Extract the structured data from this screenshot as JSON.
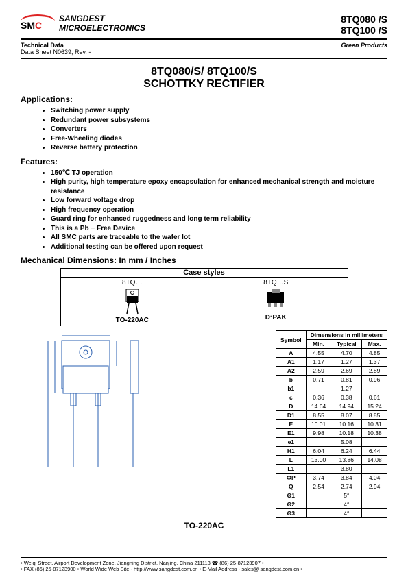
{
  "header": {
    "company_line1": "SANGDEST",
    "company_line2": "MICROELECTRONICS",
    "part1": "8TQ080 /S",
    "part2": "8TQ100 /S",
    "tech_data": "Technical Data",
    "datasheet": "Data Sheet N0639, Rev. -",
    "green": "Green Products",
    "logo_text_smc": "SMC",
    "logo_arc_color": "#d22"
  },
  "title": {
    "line1": "8TQ080/S/ 8TQ100/S",
    "line2": "SCHOTTKY RECTIFIER"
  },
  "applications": {
    "heading": "Applications:",
    "items": [
      "Switching power supply",
      "Redundant power subsystems",
      "Converters",
      "Free-Wheeling diodes",
      "Reverse battery protection"
    ]
  },
  "features": {
    "heading": "Features:",
    "items": [
      "150℃ TJ operation",
      "High purity, high temperature epoxy encapsulation for enhanced mechanical strength and moisture resistance",
      "Low forward voltage drop",
      "High frequency operation",
      "Guard ring for enhanced ruggedness and long term reliability",
      "This is a Pb − Free Device",
      "All SMC parts are traceable to the wafer lot",
      "Additional testing can be offered upon request"
    ]
  },
  "mech_heading": "Mechanical Dimensions: In mm / Inches",
  "case_styles": {
    "heading": "Case styles",
    "left_label": "8TQ…",
    "left_pkg": "TO-220AC",
    "right_label": "8TQ…S",
    "right_pkg": "D²PAK"
  },
  "dim_table": {
    "h_symbol": "Symbol",
    "h_dimensions": "Dimensions in millimeters",
    "h_min": "Min.",
    "h_typ": "Typical",
    "h_max": "Max.",
    "rows": [
      {
        "sym": "A",
        "min": "4.55",
        "typ": "4.70",
        "max": "4.85"
      },
      {
        "sym": "A1",
        "min": "1.17",
        "typ": "1.27",
        "max": "1.37"
      },
      {
        "sym": "A2",
        "min": "2.59",
        "typ": "2.69",
        "max": "2.89"
      },
      {
        "sym": "b",
        "min": "0.71",
        "typ": "0.81",
        "max": "0.96"
      },
      {
        "sym": "b1",
        "min": "",
        "typ": "1.27",
        "max": ""
      },
      {
        "sym": "c",
        "min": "0.36",
        "typ": "0.38",
        "max": "0.61"
      },
      {
        "sym": "D",
        "min": "14.64",
        "typ": "14.94",
        "max": "15.24"
      },
      {
        "sym": "D1",
        "min": "8.55",
        "typ": "8.07",
        "max": "8.85"
      },
      {
        "sym": "E",
        "min": "10.01",
        "typ": "10.16",
        "max": "10.31"
      },
      {
        "sym": "E1",
        "min": "9.98",
        "typ": "10.18",
        "max": "10.38"
      },
      {
        "sym": "e1",
        "min": "",
        "typ": "5.08",
        "max": ""
      },
      {
        "sym": "H1",
        "min": "6.04",
        "typ": "6.24",
        "max": "6.44"
      },
      {
        "sym": "L",
        "min": "13.00",
        "typ": "13.86",
        "max": "14.08"
      },
      {
        "sym": "L1",
        "min": "",
        "typ": "3.80",
        "max": ""
      },
      {
        "sym": "ΦP",
        "min": "3.74",
        "typ": "3.84",
        "max": "4.04"
      },
      {
        "sym": "Q",
        "min": "2.54",
        "typ": "2.74",
        "max": "2.94"
      },
      {
        "sym": "Θ1",
        "min": "",
        "typ": "5°",
        "max": ""
      },
      {
        "sym": "Θ2",
        "min": "",
        "typ": "4°",
        "max": ""
      },
      {
        "sym": "Θ3",
        "min": "",
        "typ": "4°",
        "max": ""
      }
    ]
  },
  "pkg_label": "TO-220AC",
  "footer": {
    "line1": "• Weiqi Street, Airport Development Zone, Jiangning District, Nanjing, China 211113 ☎ (86) 25-87123907 •",
    "line2": "• FAX (86) 25-87123900 • World Wide Web Site - http://www.sangdest.com.cn • E-Mail Address - sales@ sangdest.com.cn •"
  },
  "colors": {
    "border": "#000000",
    "text": "#000000",
    "logo_red": "#d22",
    "drawing_blue": "#2a5fb0"
  }
}
